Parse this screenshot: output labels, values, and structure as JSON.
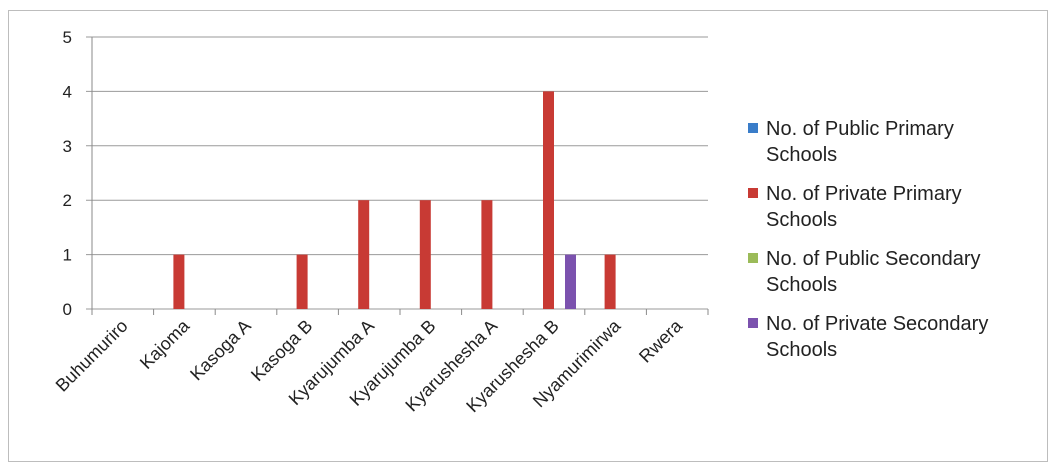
{
  "chart_data": {
    "type": "bar",
    "title": "",
    "xlabel": "",
    "ylabel": "",
    "ylim": [
      0,
      5
    ],
    "yticks": [
      0,
      1,
      2,
      3,
      4,
      5
    ],
    "grid": "horizontal",
    "legend_position": "right",
    "categories": [
      "Buhumuriro",
      "Kajoma",
      "Kasoga A",
      "Kasoga B",
      "Kyarujumba A",
      "Kyarujumba B",
      "Kyarushesha A",
      "Kyarushesha B",
      "Nyamurimirwa",
      "Rwera"
    ],
    "series": [
      {
        "name": "No. of Public Primary Schools",
        "color": "#3a7dc9",
        "values": [
          0,
          0,
          0,
          0,
          0,
          0,
          0,
          0,
          0,
          0
        ]
      },
      {
        "name": "No. of Private Primary Schools",
        "color": "#c83a34",
        "values": [
          0,
          1,
          0,
          1,
          2,
          2,
          2,
          4,
          1,
          0
        ]
      },
      {
        "name": "No. of Public Secondary Schools",
        "color": "#9bbb59",
        "values": [
          0,
          0,
          0,
          0,
          0,
          0,
          0,
          0,
          0,
          0
        ]
      },
      {
        "name": "No. of Private Secondary Schools",
        "color": "#7b52ae",
        "values": [
          0,
          0,
          0,
          0,
          0,
          0,
          0,
          1,
          0,
          0
        ]
      }
    ],
    "legend_lines": [
      [
        "No. of Public Primary",
        "Schools"
      ],
      [
        "No. of Private Primary",
        "Schools"
      ],
      [
        "No. of Public Secondary",
        "Schools"
      ],
      [
        "No. of Private Secondary",
        "Schools"
      ]
    ]
  }
}
